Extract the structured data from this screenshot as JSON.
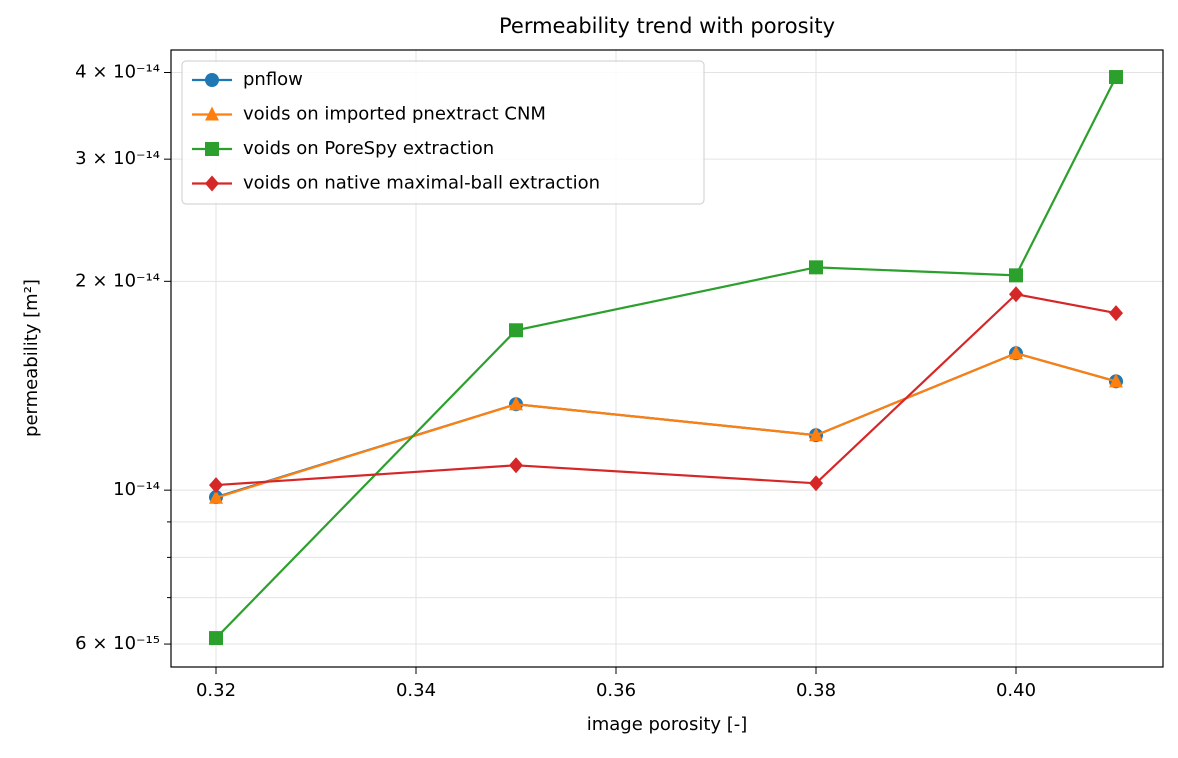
{
  "chart_data": {
    "type": "line",
    "title": "Permeability trend with porosity",
    "xlabel": "image porosity [-]",
    "ylabel": "permeability [m²]",
    "x": [
      0.32,
      0.35,
      0.38,
      0.4,
      0.41
    ],
    "series": [
      {
        "name": "pnflow",
        "color": "#1f77b4",
        "marker": "circle",
        "values": [
          9.77e-15,
          1.33e-14,
          1.2e-14,
          1.575e-14,
          1.435e-14
        ]
      },
      {
        "name": "voids on imported pnextract CNM",
        "color": "#ff7f0e",
        "marker": "triangle",
        "values": [
          9.75e-15,
          1.33e-14,
          1.2e-14,
          1.575e-14,
          1.435e-14
        ]
      },
      {
        "name": "voids on PoreSpy extraction",
        "color": "#2ca02c",
        "marker": "square",
        "values": [
          6.12e-15,
          1.7e-14,
          2.095e-14,
          2.04e-14,
          3.94e-14
        ]
      },
      {
        "name": "voids on native maximal-ball extraction",
        "color": "#d62728",
        "marker": "diamond",
        "values": [
          1.017e-14,
          1.086e-14,
          1.023e-14,
          1.916e-14,
          1.8e-14
        ]
      }
    ],
    "xlim": [
      0.3155,
      0.4147
    ],
    "ylim": [
      5.56e-15,
      4.31e-14
    ],
    "yscale": "log",
    "xticks": [
      0.32,
      0.34,
      0.36,
      0.38,
      {
        "value": 0.4,
        "label": "0.40"
      }
    ],
    "yticks": [
      {
        "value": 6e-15,
        "label": "6 × 10⁻¹⁵"
      },
      {
        "value": 1e-14,
        "label": "10⁻¹⁴"
      },
      {
        "value": 2e-14,
        "label": "2 × 10⁻¹⁴"
      },
      {
        "value": 3e-14,
        "label": "3 × 10⁻¹⁴"
      },
      {
        "value": 4e-14,
        "label": "4 × 10⁻¹⁴"
      }
    ],
    "minor_yticks": [
      7e-15,
      8e-15,
      9e-15
    ],
    "grid": true,
    "legend": "upper-left"
  }
}
